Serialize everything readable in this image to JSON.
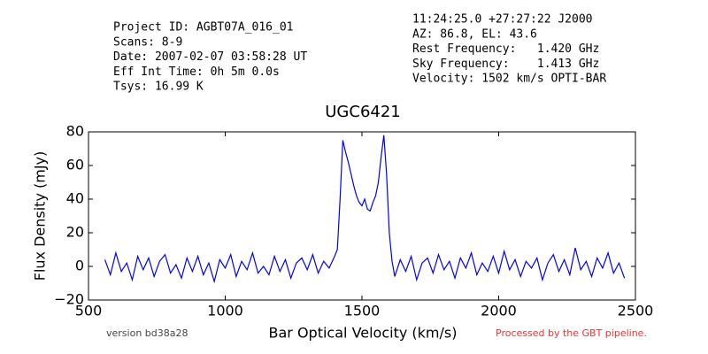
{
  "header": {
    "left": [
      "Project ID: AGBT07A_016_01",
      "Scans: 8-9",
      "Date: 2007-02-07 03:58:28 UT",
      "Eff Int Time: 0h 5m 0.0s",
      "Tsys: 16.99 K"
    ],
    "right": [
      "11:24:25.0 +27:27:22 J2000",
      "AZ: 86.8, EL: 43.6",
      "Rest Frequency:   1.420 GHz",
      "Sky Frequency:    1.413 GHz",
      "Velocity: 1502 km/s OPTI-BAR"
    ]
  },
  "footer": {
    "version": "version bd38a28",
    "pipeline": "Processed by the GBT pipeline."
  },
  "chart_data": {
    "type": "line",
    "title": "UGC6421",
    "xlabel": "Bar Optical Velocity (km/s)",
    "ylabel": "Flux Density (mJy)",
    "color": "#0000ff",
    "x": [
      560,
      580,
      600,
      620,
      640,
      660,
      680,
      700,
      720,
      740,
      760,
      780,
      800,
      820,
      840,
      860,
      880,
      900,
      920,
      940,
      960,
      980,
      1000,
      1020,
      1040,
      1060,
      1080,
      1100,
      1120,
      1140,
      1160,
      1180,
      1200,
      1220,
      1240,
      1260,
      1280,
      1300,
      1320,
      1340,
      1360,
      1380,
      1400,
      1410,
      1420,
      1430,
      1440,
      1450,
      1460,
      1470,
      1480,
      1490,
      1500,
      1510,
      1520,
      1530,
      1540,
      1550,
      1560,
      1570,
      1580,
      1590,
      1600,
      1610,
      1620,
      1640,
      1660,
      1680,
      1700,
      1720,
      1740,
      1760,
      1780,
      1800,
      1820,
      1840,
      1860,
      1880,
      1900,
      1920,
      1940,
      1960,
      1980,
      2000,
      2020,
      2040,
      2060,
      2080,
      2100,
      2120,
      2140,
      2160,
      2180,
      2200,
      2220,
      2240,
      2260,
      2280,
      2300,
      2320,
      2340,
      2360,
      2380,
      2400,
      2420,
      2440,
      2460
    ],
    "values": [
      4,
      -5,
      8,
      -3,
      2,
      -8,
      6,
      -2,
      5,
      -6,
      3,
      7,
      -4,
      1,
      -7,
      5,
      -3,
      6,
      -5,
      2,
      -9,
      4,
      -1,
      7,
      -6,
      3,
      -2,
      8,
      -4,
      0,
      -5,
      6,
      -3,
      4,
      -7,
      2,
      5,
      -2,
      7,
      -4,
      3,
      -1,
      6,
      10,
      40,
      75,
      68,
      62,
      55,
      48,
      42,
      38,
      36,
      40,
      34,
      33,
      38,
      42,
      50,
      65,
      78,
      55,
      20,
      3,
      -6,
      4,
      -3,
      6,
      -8,
      2,
      5,
      -4,
      7,
      -2,
      3,
      -7,
      5,
      -1,
      8,
      -5,
      2,
      -3,
      6,
      -4,
      9,
      -2,
      4,
      -6,
      3,
      -1,
      5,
      -8,
      2,
      7,
      -3,
      4,
      -5,
      11,
      -2,
      3,
      -6,
      5,
      -1,
      8,
      -4,
      2,
      -7
    ],
    "xlim": [
      500,
      2500
    ],
    "xticks": [
      500,
      1000,
      1500,
      2000,
      2500
    ],
    "ylim": [
      -20,
      80
    ],
    "yticks": [
      {
        "value": -20,
        "label": "−20"
      },
      0,
      20,
      40,
      60,
      80
    ]
  }
}
